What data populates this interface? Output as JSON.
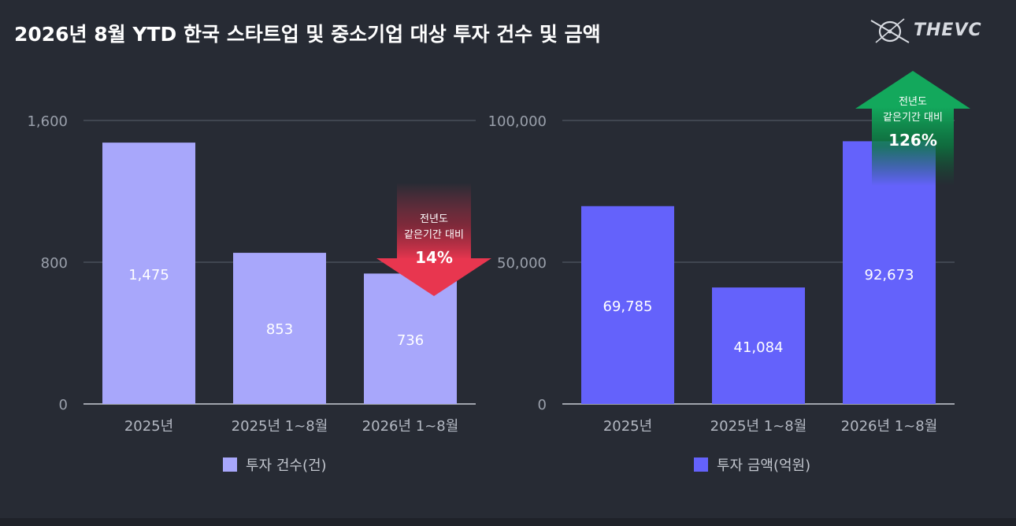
{
  "header": {
    "title": "2026년 8월 YTD 한국 스타트업 및 중소기업 대상 투자 건수 및 금액",
    "logo_text": "THEVC"
  },
  "colors": {
    "background": "#272b34",
    "count_series": "#a8a7fb",
    "amount_series": "#6462fb",
    "down_arrow": "#e8364f",
    "up_arrow": "#0a8f4c"
  },
  "chart_data": [
    {
      "type": "bar",
      "categories": [
        "2025년",
        "2025년 1~8월",
        "2026년 1~8월"
      ],
      "series": [
        {
          "name": "투자 건수(건)",
          "values": [
            1475,
            853,
            736
          ]
        }
      ],
      "data_labels": [
        "1,475",
        "853",
        "736"
      ],
      "yticks": [
        "0",
        "800",
        "1,600"
      ],
      "ylim": [
        0,
        1600
      ],
      "grid": true,
      "legend_position": "bottom-center",
      "annotation": {
        "line1": "전년도",
        "line2": "같은기간 대비",
        "value": "14%",
        "direction": "down",
        "category_index": 2
      }
    },
    {
      "type": "bar",
      "categories": [
        "2025년",
        "2025년 1~8월",
        "2026년 1~8월"
      ],
      "series": [
        {
          "name": "투자 금액(억원)",
          "values": [
            69785,
            41084,
            92673
          ]
        }
      ],
      "data_labels": [
        "69,785",
        "41,084",
        "92,673"
      ],
      "yticks": [
        "0",
        "50,000",
        "100,000"
      ],
      "ylim": [
        0,
        100000
      ],
      "grid": true,
      "legend_position": "bottom-center",
      "annotation": {
        "line1": "전년도",
        "line2": "같은기간 대비",
        "value": "126%",
        "direction": "up",
        "category_index": 2
      }
    }
  ]
}
